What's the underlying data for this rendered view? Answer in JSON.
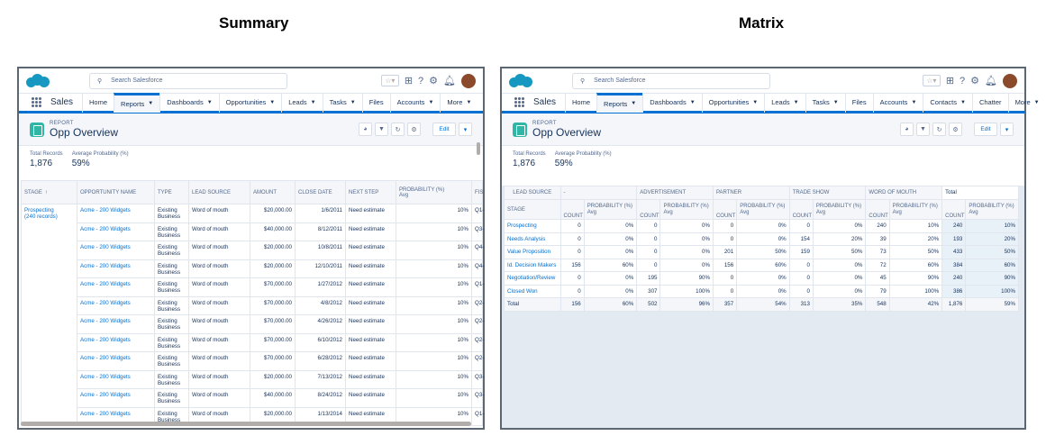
{
  "headings": {
    "summary": "Summary",
    "matrix": "Matrix"
  },
  "common": {
    "search_placeholder": "Search Salesforce",
    "app_name": "Sales",
    "report_label": "REPORT",
    "report_title": "Opp Overview",
    "edit_label": "Edit",
    "total_records_label": "Total Records",
    "total_records_value": "1,876",
    "avg_prob_label": "Average Probability (%)",
    "avg_prob_value": "59%",
    "accent": "#0070d2"
  },
  "summary": {
    "nav": [
      "Home",
      "Reports",
      "Dashboards",
      "Opportunities",
      "Leads",
      "Tasks",
      "Files",
      "Accounts",
      "More"
    ],
    "nav_chevrons": [
      false,
      true,
      true,
      true,
      true,
      true,
      false,
      true,
      true
    ],
    "columns": [
      "STAGE",
      "OPPORTUNITY NAME",
      "TYPE",
      "LEAD SOURCE",
      "AMOUNT",
      "CLOSE DATE",
      "NEXT STEP",
      "PROBABILITY (%)",
      "FIS"
    ],
    "prob_sub": "Avg",
    "stage_sort_icon": "↑",
    "group_label": "Prospecting",
    "group_count": "(240 records)",
    "rows": [
      [
        "Acme - 200 Widgets",
        "Existing Business",
        "Word of mouth",
        "$20,000.00",
        "1/6/2011",
        "Need estimate",
        "10%",
        "Q1-"
      ],
      [
        "Acme - 200 Widgets",
        "Existing Business",
        "Word of mouth",
        "$40,000.00",
        "8/12/2011",
        "Need estimate",
        "10%",
        "Q3-"
      ],
      [
        "Acme - 200 Widgets",
        "Existing Business",
        "Word of mouth",
        "$20,000.00",
        "10/8/2011",
        "Need estimate",
        "10%",
        "Q4-"
      ],
      [
        "Acme - 200 Widgets",
        "Existing Business",
        "Word of mouth",
        "$20,000.00",
        "12/10/2011",
        "Need estimate",
        "10%",
        "Q4-"
      ],
      [
        "Acme - 200 Widgets",
        "Existing Business",
        "Word of mouth",
        "$70,000.00",
        "1/27/2012",
        "Need estimate",
        "10%",
        "Q1-"
      ],
      [
        "Acme - 200 Widgets",
        "Existing Business",
        "Word of mouth",
        "$70,000.00",
        "4/8/2012",
        "Need estimate",
        "10%",
        "Q2-"
      ],
      [
        "Acme - 200 Widgets",
        "Existing Business",
        "Word of mouth",
        "$70,000.00",
        "4/26/2012",
        "Need estimate",
        "10%",
        "Q2-"
      ],
      [
        "Acme - 200 Widgets",
        "Existing Business",
        "Word of mouth",
        "$70,000.00",
        "6/10/2012",
        "Need estimate",
        "10%",
        "Q2-"
      ],
      [
        "Acme - 200 Widgets",
        "Existing Business",
        "Word of mouth",
        "$70,000.00",
        "6/28/2012",
        "Need estimate",
        "10%",
        "Q2-"
      ],
      [
        "Acme - 200 Widgets",
        "Existing Business",
        "Word of mouth",
        "$20,000.00",
        "7/13/2012",
        "Need estimate",
        "10%",
        "Q3-"
      ],
      [
        "Acme - 200 Widgets",
        "Existing Business",
        "Word of mouth",
        "$40,000.00",
        "8/24/2012",
        "Need estimate",
        "10%",
        "Q3-"
      ],
      [
        "Acme - 200 Widgets",
        "Existing Business",
        "Word of mouth",
        "$20,000.00",
        "1/13/2014",
        "Need estimate",
        "10%",
        "Q1-"
      ]
    ]
  },
  "matrix": {
    "nav": [
      "Home",
      "Reports",
      "Dashboards",
      "Opportunities",
      "Leads",
      "Tasks",
      "Files",
      "Accounts",
      "Contacts",
      "Chatter",
      "More"
    ],
    "nav_chevrons": [
      false,
      true,
      true,
      true,
      true,
      true,
      false,
      true,
      true,
      false,
      true
    ],
    "lead_source_label": "LEAD SOURCE",
    "stage_label": "STAGE",
    "groups": [
      "-",
      "ADVERTISEMENT",
      "PARTNER",
      "TRADE SHOW",
      "WORD OF MOUTH",
      "Total"
    ],
    "count_label": "COUNT",
    "prob_label": "PROBABILITY (%)",
    "avg_label": "Avg",
    "rows": [
      {
        "stage": "Prospecting",
        "cells": [
          "0",
          "0%",
          "0",
          "0%",
          "0",
          "0%",
          "0",
          "0%",
          "240",
          "10%",
          "240",
          "10%"
        ]
      },
      {
        "stage": "Needs Analysis",
        "cells": [
          "0",
          "0%",
          "0",
          "0%",
          "0",
          "0%",
          "154",
          "20%",
          "39",
          "20%",
          "193",
          "20%"
        ]
      },
      {
        "stage": "Value Proposition",
        "cells": [
          "0",
          "0%",
          "0",
          "0%",
          "201",
          "50%",
          "159",
          "50%",
          "73",
          "50%",
          "433",
          "50%"
        ]
      },
      {
        "stage": "Id. Decision Makers",
        "cells": [
          "156",
          "60%",
          "0",
          "0%",
          "156",
          "60%",
          "0",
          "0%",
          "72",
          "60%",
          "384",
          "60%"
        ]
      },
      {
        "stage": "Negotiation/Review",
        "cells": [
          "0",
          "0%",
          "195",
          "90%",
          "0",
          "0%",
          "0",
          "0%",
          "45",
          "90%",
          "240",
          "90%"
        ]
      },
      {
        "stage": "Closed Won",
        "cells": [
          "0",
          "0%",
          "307",
          "100%",
          "0",
          "0%",
          "0",
          "0%",
          "79",
          "100%",
          "386",
          "100%"
        ]
      }
    ],
    "total_row": {
      "stage": "Total",
      "cells": [
        "156",
        "60%",
        "502",
        "96%",
        "357",
        "54%",
        "313",
        "35%",
        "548",
        "42%",
        "1,876",
        "59%"
      ]
    }
  }
}
